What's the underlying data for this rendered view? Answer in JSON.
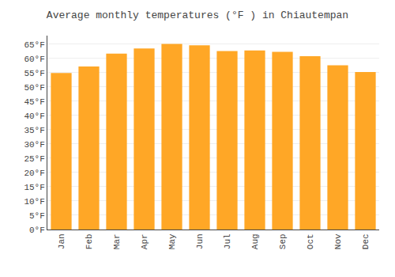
{
  "chart_data": {
    "type": "bar",
    "title": "Average monthly temperatures (°F ) in Chiautempan",
    "categories": [
      "Jan",
      "Feb",
      "Mar",
      "Apr",
      "May",
      "Jun",
      "Jul",
      "Aug",
      "Sep",
      "Oct",
      "Nov",
      "Dec"
    ],
    "values": [
      54.9,
      57.2,
      61.7,
      63.5,
      65.1,
      64.6,
      62.6,
      62.8,
      62.3,
      60.8,
      57.6,
      55.2
    ],
    "color": "#FFA726",
    "ylim": [
      0,
      68
    ],
    "yticks": [
      {
        "value": 0,
        "label": "0°F"
      },
      {
        "value": 5,
        "label": "5°F"
      },
      {
        "value": 10,
        "label": "10°F"
      },
      {
        "value": 15,
        "label": "15°F"
      },
      {
        "value": 20,
        "label": "20°F"
      },
      {
        "value": 25,
        "label": "25°F"
      },
      {
        "value": 30,
        "label": "30°F"
      },
      {
        "value": 35,
        "label": "35°F"
      },
      {
        "value": 40,
        "label": "40°F"
      },
      {
        "value": 45,
        "label": "45°F"
      },
      {
        "value": 50,
        "label": "50°F"
      },
      {
        "value": 55,
        "label": "55°F"
      },
      {
        "value": 60,
        "label": "60°F"
      },
      {
        "value": 65,
        "label": "65°F"
      }
    ],
    "grid": true
  }
}
